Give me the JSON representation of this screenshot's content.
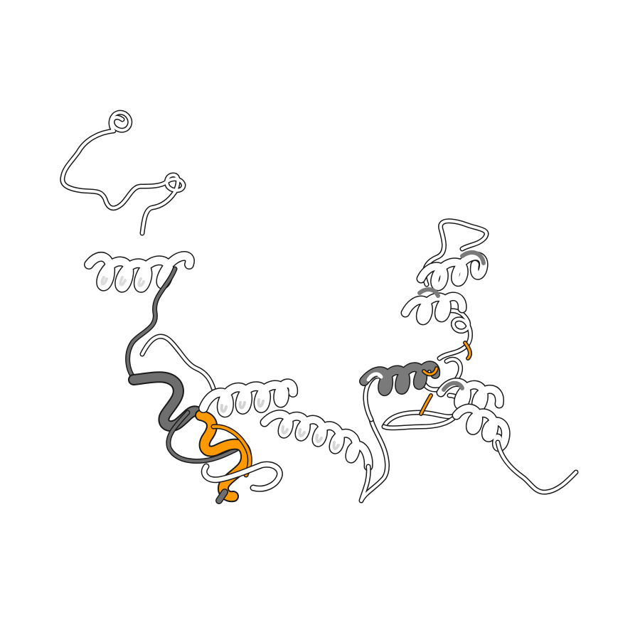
{
  "image": {
    "background": "#ffffff",
    "colors": {
      "coil": "#ffffff",
      "outline": "#1a1a1a",
      "shadow": "#d8d8d8",
      "dark_region": "#6e6e6e",
      "highlight": "#ff9900"
    }
  }
}
